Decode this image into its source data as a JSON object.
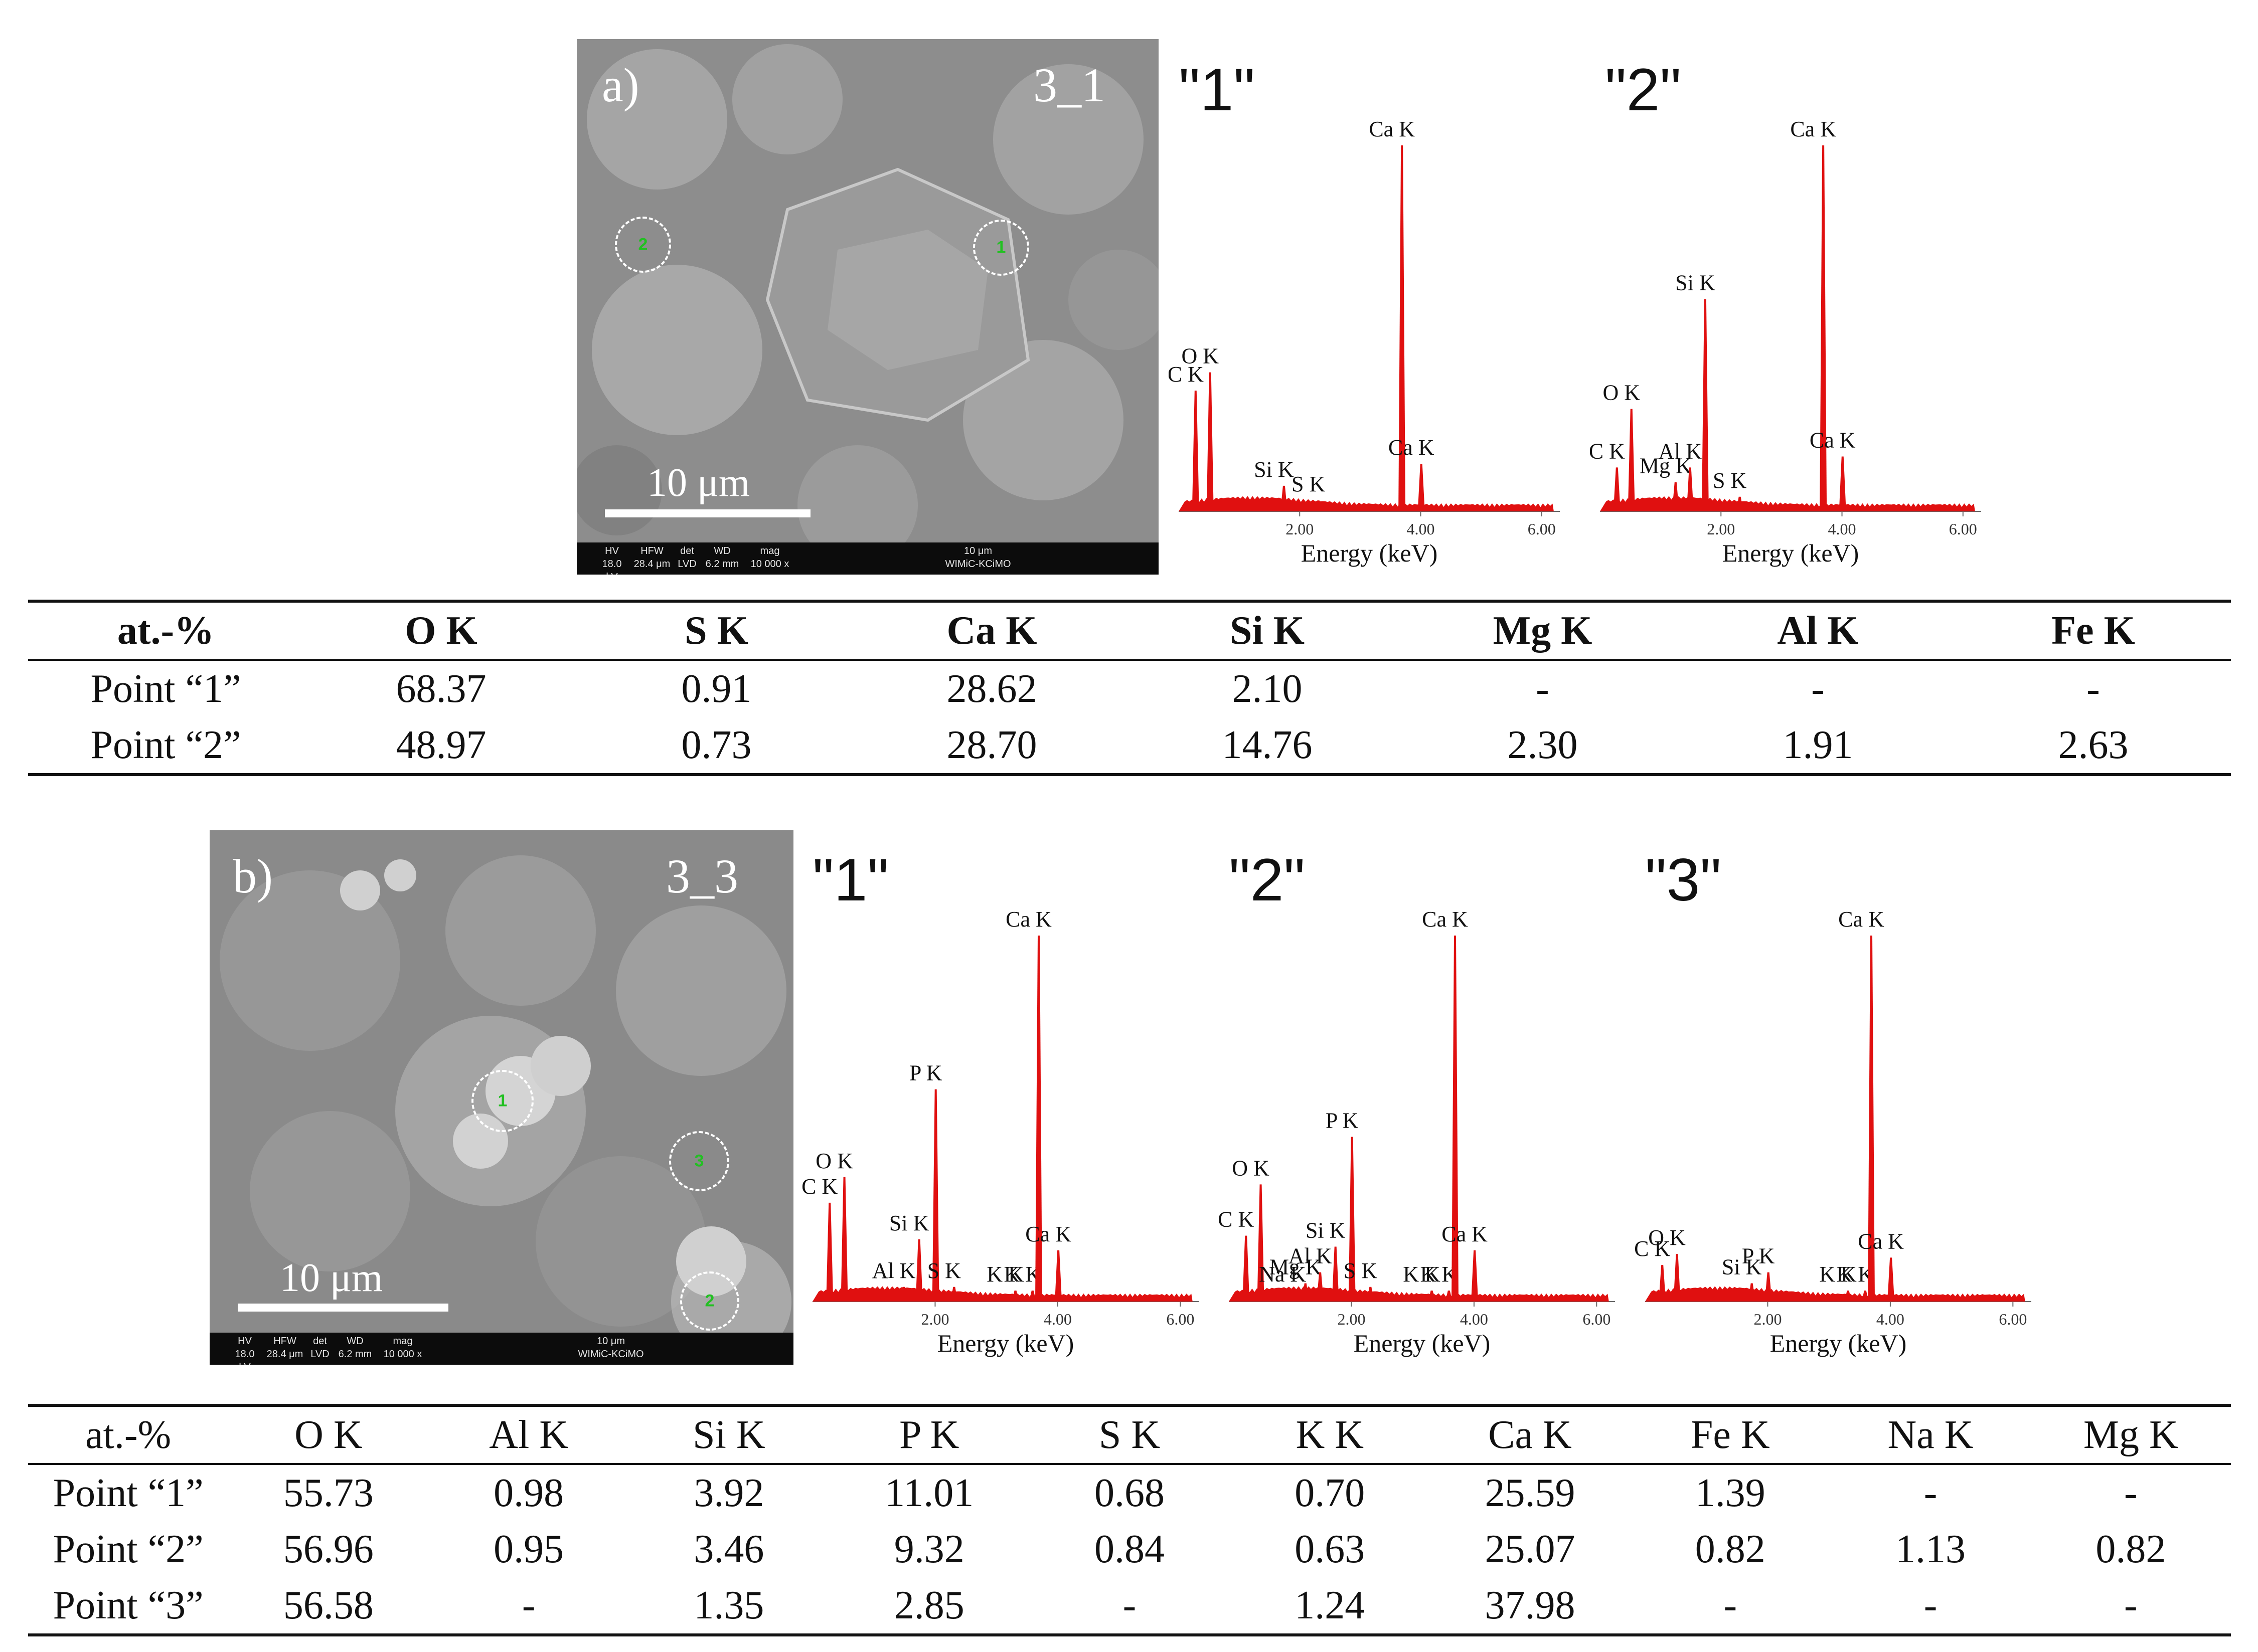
{
  "panel_a": {
    "letter": "a)",
    "sample": "3_1",
    "scale_label": "10 μm",
    "markers": [
      "1",
      "2"
    ],
    "infobar": {
      "cols": [
        {
          "h": "HV",
          "v": "18.0 kV"
        },
        {
          "h": "HFW",
          "v": "28.4 μm"
        },
        {
          "h": "det",
          "v": "LVD"
        },
        {
          "h": "WD",
          "v": "6.2 mm"
        },
        {
          "h": "mag",
          "v": "10 000 x"
        }
      ],
      "scale": "10 μm",
      "lab": "WIMiC-KCiMO"
    },
    "spectra": [
      {
        "title": "\"1\"",
        "xlabel": "Energy (keV)",
        "ticks": [
          "2.00",
          "4.00",
          "6.00"
        ],
        "peaks": [
          {
            "label": "C K",
            "energy": 0.28,
            "height": 0.33
          },
          {
            "label": "O K",
            "energy": 0.52,
            "height": 0.38
          },
          {
            "label": "Si K",
            "energy": 1.74,
            "height": 0.07
          },
          {
            "label": "S K",
            "energy": 2.31,
            "height": 0.03
          },
          {
            "label": "Ca K",
            "energy": 3.69,
            "height": 1.0
          },
          {
            "label": "Ca K",
            "energy": 4.01,
            "height": 0.13
          }
        ]
      },
      {
        "title": "\"2\"",
        "xlabel": "Energy (keV)",
        "ticks": [
          "2.00",
          "4.00",
          "6.00"
        ],
        "peaks": [
          {
            "label": "C K",
            "energy": 0.28,
            "height": 0.12
          },
          {
            "label": "O K",
            "energy": 0.52,
            "height": 0.28
          },
          {
            "label": "Mg K",
            "energy": 1.25,
            "height": 0.08
          },
          {
            "label": "Al K",
            "energy": 1.49,
            "height": 0.12
          },
          {
            "label": "Si K",
            "energy": 1.74,
            "height": 0.58
          },
          {
            "label": "S K",
            "energy": 2.31,
            "height": 0.04
          },
          {
            "label": "Ca K",
            "energy": 3.69,
            "height": 1.0
          },
          {
            "label": "Ca K",
            "energy": 4.01,
            "height": 0.15
          }
        ]
      }
    ]
  },
  "table_a": {
    "headers": [
      "at.-%",
      "O K",
      "S K",
      "Ca K",
      "Si K",
      "Mg K",
      "Al K",
      "Fe K"
    ],
    "rows": [
      [
        "Point “1”",
        "68.37",
        "0.91",
        "28.62",
        "2.10",
        "-",
        "-",
        "-"
      ],
      [
        "Point “2”",
        "48.97",
        "0.73",
        "28.70",
        "14.76",
        "2.30",
        "1.91",
        "2.63"
      ]
    ]
  },
  "panel_b": {
    "letter": "b)",
    "sample": "3_3",
    "scale_label": "10 μm",
    "markers": [
      "1",
      "3",
      "2"
    ],
    "infobar": {
      "cols": [
        {
          "h": "HV",
          "v": "18.0 kV"
        },
        {
          "h": "HFW",
          "v": "28.4 μm"
        },
        {
          "h": "det",
          "v": "LVD"
        },
        {
          "h": "WD",
          "v": "6.2 mm"
        },
        {
          "h": "mag",
          "v": "10 000 x"
        }
      ],
      "scale": "10 μm",
      "lab": "WIMiC-KCiMO"
    },
    "spectra": [
      {
        "title": "\"1\"",
        "xlabel": "Energy (keV)",
        "ticks": [
          "2.00",
          "4.00",
          "6.00"
        ],
        "peaks": [
          {
            "label": "C K",
            "energy": 0.28,
            "height": 0.27
          },
          {
            "label": "O K",
            "energy": 0.52,
            "height": 0.34
          },
          {
            "label": "Al K",
            "energy": 1.49,
            "height": 0.04
          },
          {
            "label": "Si K",
            "energy": 1.74,
            "height": 0.17
          },
          {
            "label": "P K",
            "energy": 2.01,
            "height": 0.58
          },
          {
            "label": "S K",
            "energy": 2.31,
            "height": 0.04
          },
          {
            "label": "K K",
            "energy": 3.31,
            "height": 0.03
          },
          {
            "label": "K K",
            "energy": 3.59,
            "height": 0.03
          },
          {
            "label": "Ca K",
            "energy": 3.69,
            "height": 1.0
          },
          {
            "label": "Ca K",
            "energy": 4.01,
            "height": 0.14
          }
        ]
      },
      {
        "title": "\"2\"",
        "xlabel": "Energy (keV)",
        "ticks": [
          "2.00",
          "4.00",
          "6.00"
        ],
        "peaks": [
          {
            "label": "C K",
            "energy": 0.28,
            "height": 0.18
          },
          {
            "label": "O K",
            "energy": 0.52,
            "height": 0.32
          },
          {
            "label": "Na K",
            "energy": 1.04,
            "height": 0.03
          },
          {
            "label": "Mg K",
            "energy": 1.25,
            "height": 0.05
          },
          {
            "label": "Al K",
            "energy": 1.49,
            "height": 0.08
          },
          {
            "label": "Si K",
            "energy": 1.74,
            "height": 0.15
          },
          {
            "label": "P K",
            "energy": 2.01,
            "height": 0.45
          },
          {
            "label": "S K",
            "energy": 2.31,
            "height": 0.04
          },
          {
            "label": "K K",
            "energy": 3.31,
            "height": 0.03
          },
          {
            "label": "K K",
            "energy": 3.59,
            "height": 0.03
          },
          {
            "label": "Ca K",
            "energy": 3.69,
            "height": 1.0
          },
          {
            "label": "Ca K",
            "energy": 4.01,
            "height": 0.14
          }
        ]
      },
      {
        "title": "\"3\"",
        "xlabel": "Energy (keV)",
        "ticks": [
          "2.00",
          "4.00",
          "6.00"
        ],
        "peaks": [
          {
            "label": "C K",
            "energy": 0.28,
            "height": 0.1
          },
          {
            "label": "O K",
            "energy": 0.52,
            "height": 0.13
          },
          {
            "label": "Si K",
            "energy": 1.74,
            "height": 0.05
          },
          {
            "label": "P K",
            "energy": 2.01,
            "height": 0.08
          },
          {
            "label": "K K",
            "energy": 3.31,
            "height": 0.03
          },
          {
            "label": "K K",
            "energy": 3.59,
            "height": 0.03
          },
          {
            "label": "Ca K",
            "energy": 3.69,
            "height": 1.0
          },
          {
            "label": "Ca K",
            "energy": 4.01,
            "height": 0.12
          }
        ]
      }
    ]
  },
  "table_b": {
    "headers": [
      "at.-%",
      "O K",
      "Al K",
      "Si K",
      "P K",
      "S K",
      "K K",
      "Ca K",
      "Fe K",
      "Na K",
      "Mg K"
    ],
    "rows": [
      [
        "Point “1”",
        "55.73",
        "0.98",
        "3.92",
        "11.01",
        "0.68",
        "0.70",
        "25.59",
        "1.39",
        "-",
        "-"
      ],
      [
        "Point “2”",
        "56.96",
        "0.95",
        "3.46",
        "9.32",
        "0.84",
        "0.63",
        "25.07",
        "0.82",
        "1.13",
        "0.82"
      ],
      [
        "Point “3”",
        "56.58",
        "-",
        "1.35",
        "2.85",
        "-",
        "1.24",
        "37.98",
        "-",
        "-",
        "-"
      ]
    ]
  },
  "colors": {
    "spectrum": "#e01010",
    "marker_text": "#22c022",
    "sem_bg": "#8a8a8a"
  }
}
